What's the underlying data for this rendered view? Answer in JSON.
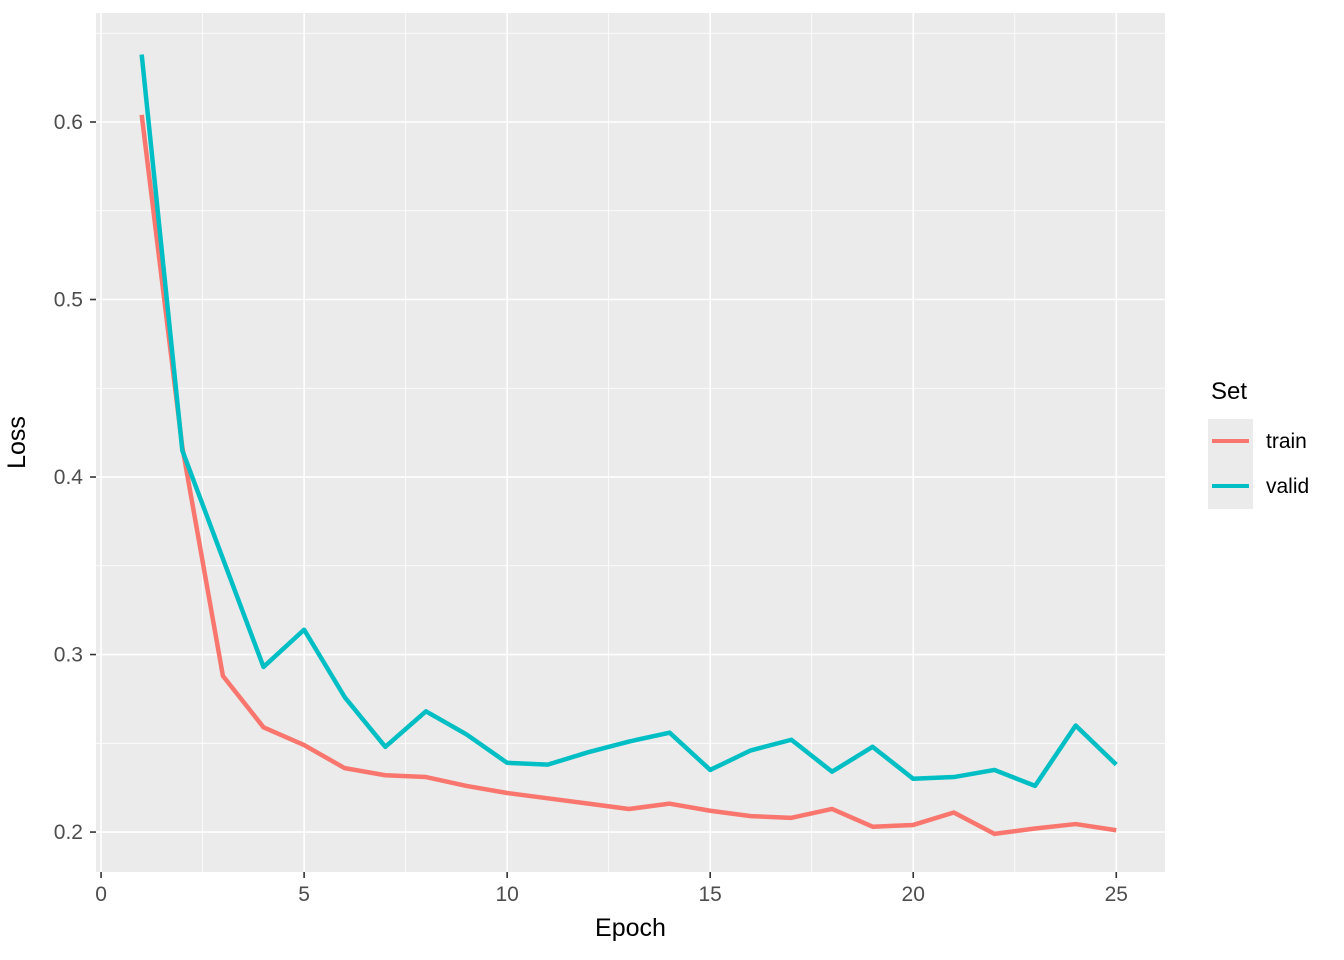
{
  "chart_data": {
    "type": "line",
    "title": "",
    "xlabel": "Epoch",
    "ylabel": "Loss",
    "x": [
      1,
      2,
      3,
      4,
      5,
      6,
      7,
      8,
      9,
      10,
      11,
      12,
      13,
      14,
      15,
      16,
      17,
      18,
      19,
      20,
      21,
      22,
      23,
      24,
      25
    ],
    "series": [
      {
        "name": "train",
        "color": "#F8766D",
        "values": [
          0.604,
          0.417,
          0.288,
          0.259,
          0.249,
          0.236,
          0.232,
          0.231,
          0.226,
          0.222,
          0.219,
          0.216,
          0.213,
          0.216,
          0.212,
          0.209,
          0.208,
          0.213,
          0.203,
          0.204,
          0.211,
          0.199,
          0.202,
          0.2045,
          0.201
        ]
      },
      {
        "name": "valid",
        "color": "#00BFC4",
        "values": [
          0.638,
          0.415,
          0.354,
          0.293,
          0.314,
          0.276,
          0.248,
          0.268,
          0.255,
          0.239,
          0.238,
          0.245,
          0.251,
          0.256,
          0.235,
          0.246,
          0.252,
          0.234,
          0.248,
          0.23,
          0.231,
          0.235,
          0.226,
          0.26,
          0.238
        ]
      }
    ],
    "legend": {
      "title": "Set",
      "position": "right",
      "entries": [
        "train",
        "valid"
      ]
    },
    "axes": {
      "x": {
        "breaks": [
          0,
          5,
          10,
          15,
          20,
          25
        ],
        "labels": [
          "0",
          "5",
          "10",
          "15",
          "20",
          "25"
        ],
        "minor_breaks": [
          2.5,
          7.5,
          12.5,
          17.5,
          22.5
        ],
        "lim": [
          -0.125,
          26.2
        ]
      },
      "y": {
        "breaks": [
          0.2,
          0.3,
          0.4,
          0.5,
          0.6
        ],
        "labels": [
          "0.2",
          "0.3",
          "0.4",
          "0.5",
          "0.6"
        ],
        "minor_breaks": [
          0.25,
          0.35,
          0.45,
          0.55,
          0.65
        ],
        "lim": [
          0.1775,
          0.6614
        ]
      }
    },
    "style": {
      "panel_bg": "#EBEBEB",
      "grid_color": "#FFFFFF",
      "tick_color": "#333333",
      "tick_label_color": "#4D4D4D",
      "axis_title_color": "#000000",
      "legend_key_bg": "#EBEBEB"
    }
  }
}
